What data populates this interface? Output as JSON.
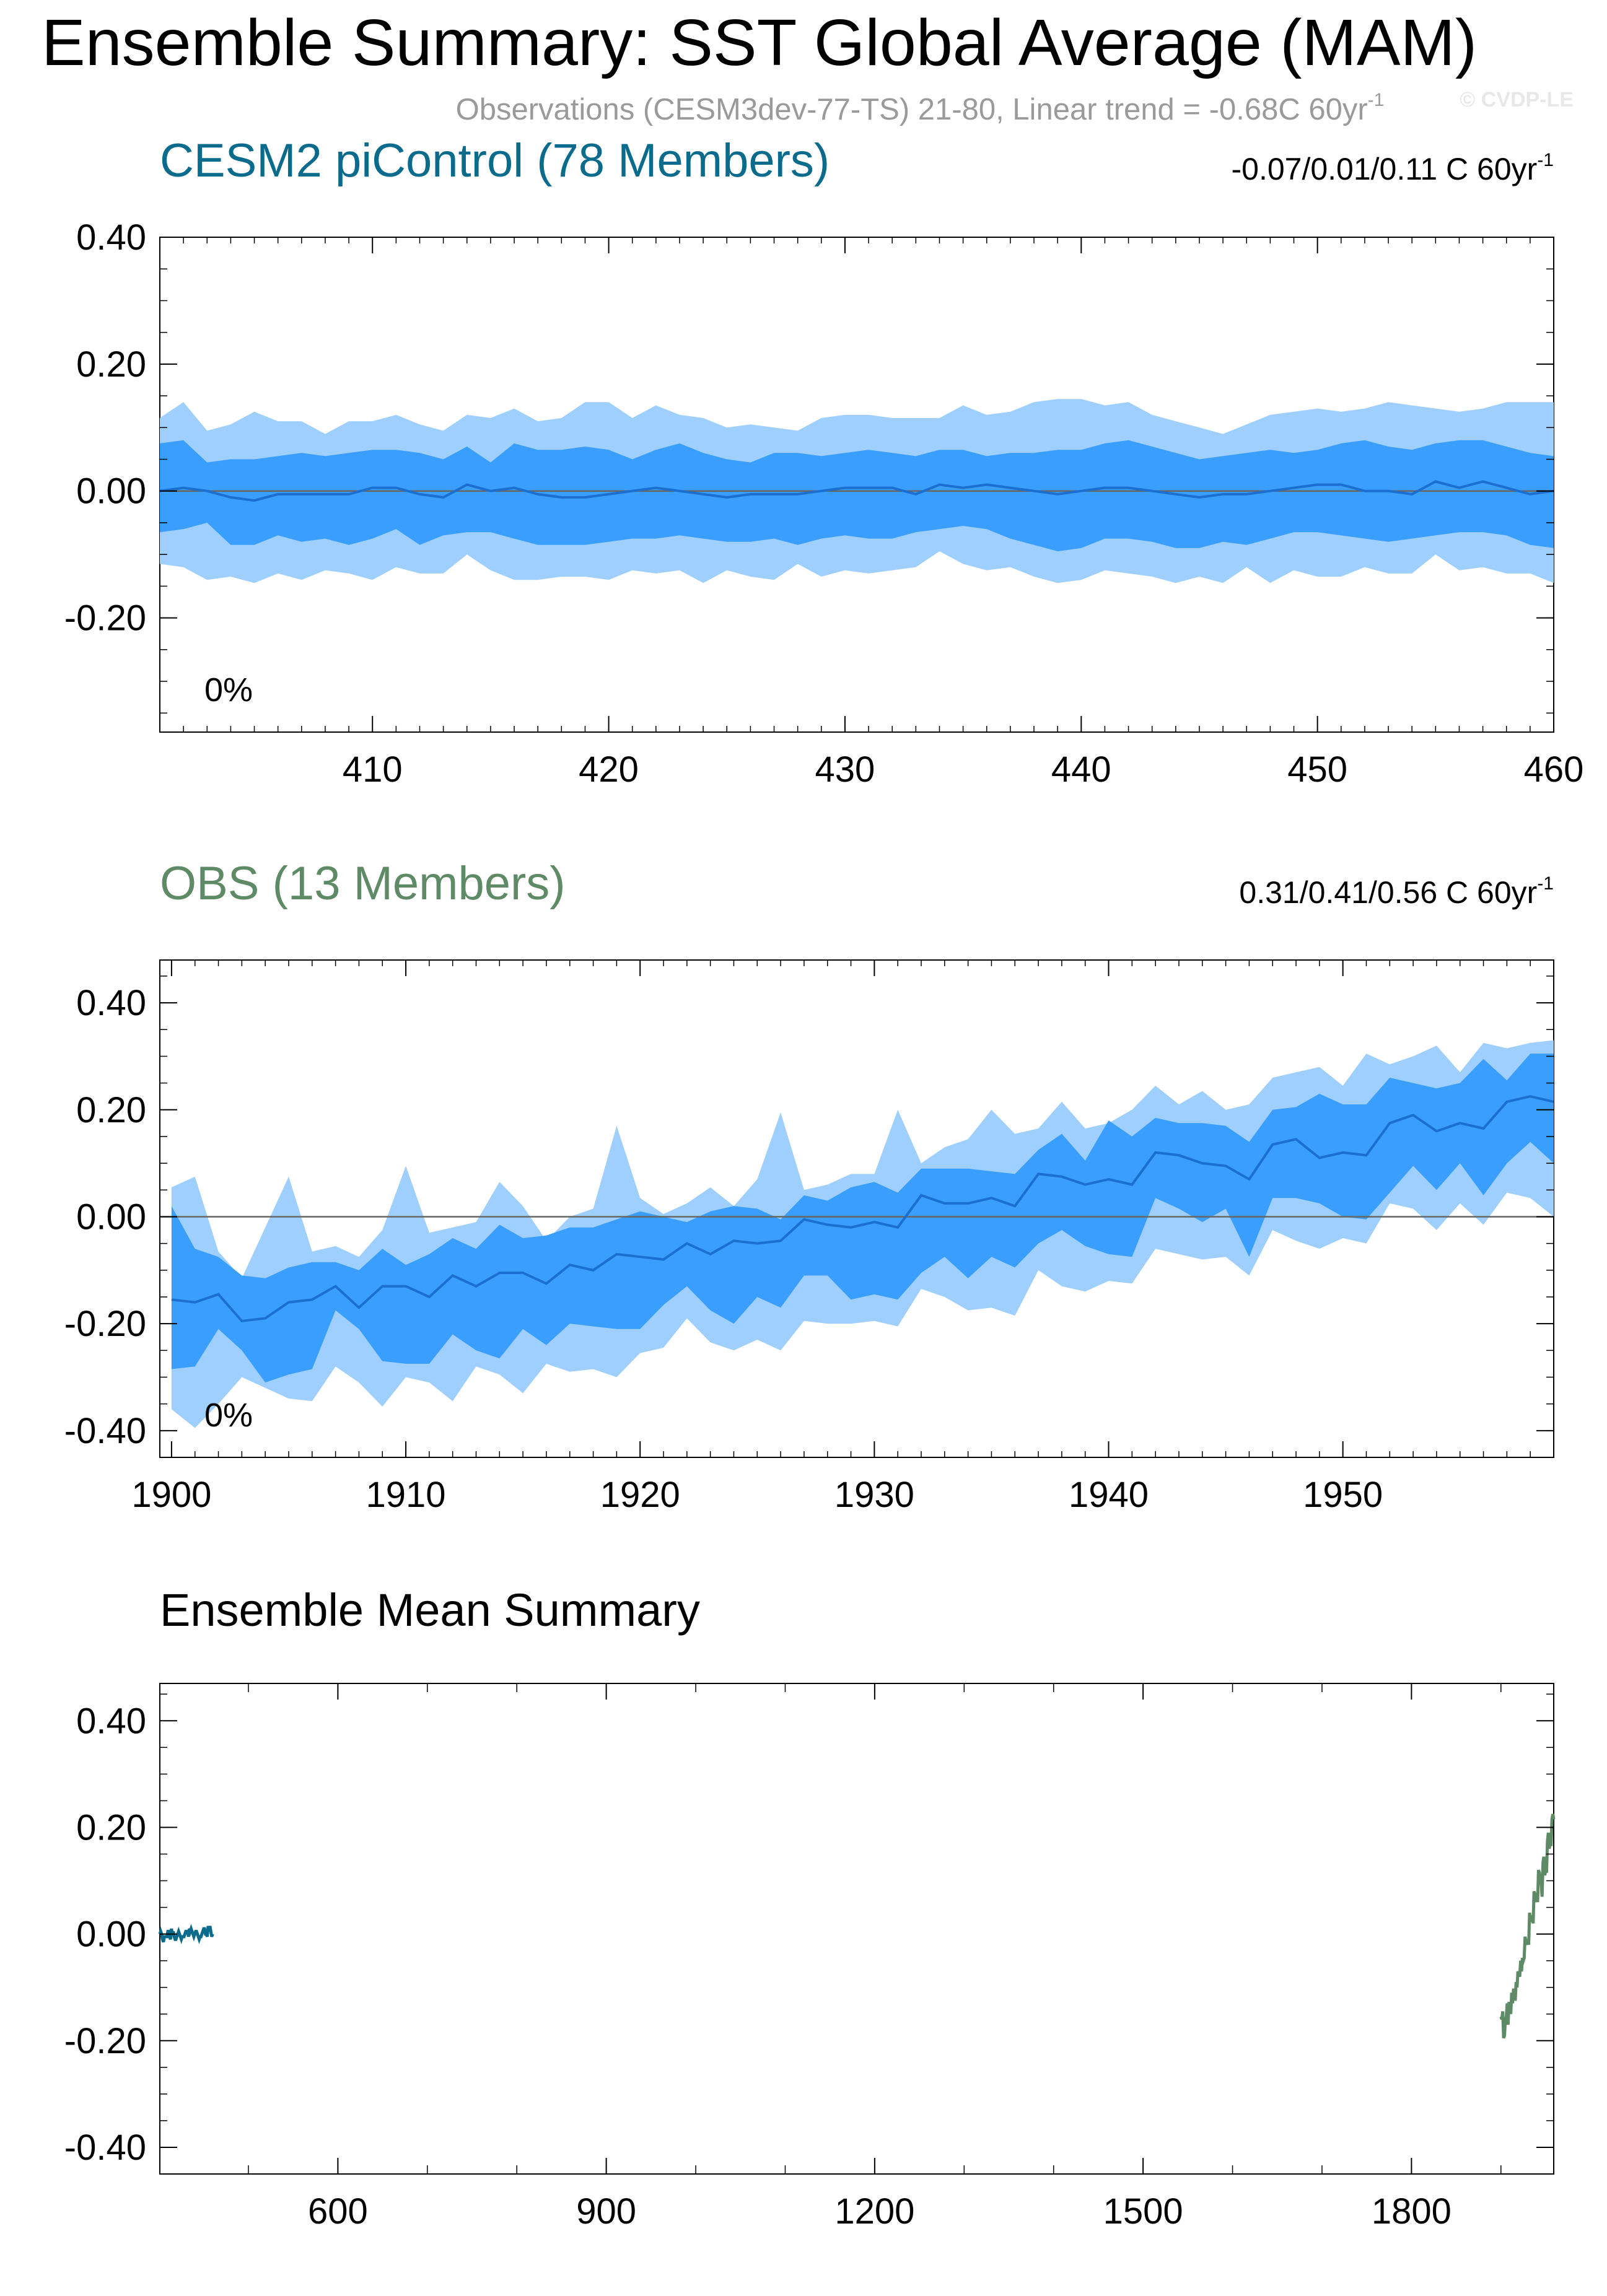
{
  "header": {
    "title": "Ensemble Summary: SST Global Average (MAM)",
    "subtitle": "Observations (CESM3dev-77-TS) 21-80, Linear trend = -0.68C 60yr",
    "subtitle_sup": "-1",
    "copyright": "© CVDP-LE"
  },
  "colors": {
    "band_outer": "#9ecfff",
    "band_inner": "#3a9eff",
    "mean_line": "#1a6fcf",
    "cesm_title": "#0b6b8c",
    "obs_title": "#5f8a66",
    "axis": "#000000",
    "subtitle": "#9a9a9a"
  },
  "chart_data": [
    {
      "id": "cesm",
      "type": "area",
      "title": "CESM2 piControl (78 Members)",
      "trend_text": "-0.07/0.01/0.11 C 60yr",
      "trend_sup": "-1",
      "pct_label": "0%",
      "xlim": [
        401,
        460
      ],
      "ylim": [
        -0.38,
        0.4
      ],
      "x_ticks": [
        410,
        420,
        430,
        440,
        450,
        460
      ],
      "x_tick_labels": [
        "410",
        "420",
        "430",
        "440",
        "450",
        "460"
      ],
      "y_ticks": [
        0.4,
        0.2,
        0.0,
        -0.2
      ],
      "y_tick_labels": [
        "0.40",
        "0.20",
        "0.00",
        "-0.20"
      ],
      "zero_line": true,
      "x": [
        401,
        402,
        403,
        404,
        405,
        406,
        407,
        408,
        409,
        410,
        411,
        412,
        413,
        414,
        415,
        416,
        417,
        418,
        419,
        420,
        421,
        422,
        423,
        424,
        425,
        426,
        427,
        428,
        429,
        430,
        431,
        432,
        433,
        434,
        435,
        436,
        437,
        438,
        439,
        440,
        441,
        442,
        443,
        444,
        445,
        446,
        447,
        448,
        449,
        450,
        451,
        452,
        453,
        454,
        455,
        456,
        457,
        458,
        459,
        460
      ],
      "mean": [
        0.0,
        0.005,
        0.0,
        -0.01,
        -0.015,
        -0.005,
        -0.005,
        -0.005,
        -0.005,
        0.005,
        0.005,
        -0.005,
        -0.01,
        0.01,
        0.0,
        0.005,
        -0.005,
        -0.01,
        -0.01,
        -0.005,
        0.0,
        0.005,
        0.0,
        -0.005,
        -0.01,
        -0.005,
        -0.005,
        -0.005,
        0.0,
        0.005,
        0.005,
        0.005,
        -0.005,
        0.01,
        0.005,
        0.01,
        0.005,
        0.0,
        -0.005,
        0.0,
        0.005,
        0.005,
        0.0,
        -0.005,
        -0.01,
        -0.005,
        -0.005,
        0.0,
        0.005,
        0.01,
        0.01,
        0.0,
        0.0,
        -0.005,
        0.015,
        0.005,
        0.015,
        0.005,
        -0.005,
        0.0
      ],
      "p25": [
        -0.065,
        -0.06,
        -0.05,
        -0.085,
        -0.085,
        -0.07,
        -0.08,
        -0.075,
        -0.085,
        -0.075,
        -0.06,
        -0.085,
        -0.07,
        -0.065,
        -0.065,
        -0.075,
        -0.085,
        -0.085,
        -0.085,
        -0.08,
        -0.075,
        -0.075,
        -0.07,
        -0.075,
        -0.08,
        -0.08,
        -0.075,
        -0.085,
        -0.075,
        -0.07,
        -0.075,
        -0.075,
        -0.065,
        -0.06,
        -0.055,
        -0.06,
        -0.075,
        -0.085,
        -0.095,
        -0.09,
        -0.075,
        -0.075,
        -0.08,
        -0.09,
        -0.09,
        -0.08,
        -0.085,
        -0.075,
        -0.065,
        -0.065,
        -0.07,
        -0.075,
        -0.08,
        -0.075,
        -0.07,
        -0.065,
        -0.065,
        -0.07,
        -0.085,
        -0.09
      ],
      "p75": [
        0.075,
        0.08,
        0.045,
        0.05,
        0.05,
        0.055,
        0.06,
        0.055,
        0.06,
        0.065,
        0.065,
        0.06,
        0.05,
        0.07,
        0.045,
        0.075,
        0.065,
        0.065,
        0.07,
        0.065,
        0.05,
        0.065,
        0.075,
        0.06,
        0.05,
        0.045,
        0.06,
        0.06,
        0.055,
        0.06,
        0.065,
        0.06,
        0.055,
        0.065,
        0.065,
        0.055,
        0.06,
        0.06,
        0.065,
        0.065,
        0.075,
        0.08,
        0.07,
        0.06,
        0.05,
        0.055,
        0.06,
        0.065,
        0.06,
        0.065,
        0.075,
        0.08,
        0.07,
        0.065,
        0.075,
        0.08,
        0.08,
        0.07,
        0.06,
        0.055
      ],
      "p05": [
        -0.115,
        -0.12,
        -0.14,
        -0.135,
        -0.145,
        -0.13,
        -0.14,
        -0.125,
        -0.13,
        -0.14,
        -0.12,
        -0.13,
        -0.13,
        -0.1,
        -0.125,
        -0.14,
        -0.14,
        -0.135,
        -0.135,
        -0.14,
        -0.125,
        -0.13,
        -0.125,
        -0.145,
        -0.125,
        -0.135,
        -0.14,
        -0.115,
        -0.135,
        -0.125,
        -0.13,
        -0.125,
        -0.12,
        -0.095,
        -0.115,
        -0.125,
        -0.12,
        -0.135,
        -0.145,
        -0.14,
        -0.125,
        -0.13,
        -0.135,
        -0.145,
        -0.135,
        -0.145,
        -0.12,
        -0.145,
        -0.125,
        -0.135,
        -0.135,
        -0.12,
        -0.13,
        -0.13,
        -0.1,
        -0.125,
        -0.12,
        -0.13,
        -0.13,
        -0.145
      ],
      "p95": [
        0.115,
        0.14,
        0.095,
        0.105,
        0.125,
        0.11,
        0.11,
        0.09,
        0.11,
        0.11,
        0.12,
        0.105,
        0.095,
        0.12,
        0.115,
        0.13,
        0.11,
        0.115,
        0.14,
        0.14,
        0.115,
        0.135,
        0.12,
        0.115,
        0.1,
        0.105,
        0.1,
        0.095,
        0.115,
        0.12,
        0.12,
        0.115,
        0.115,
        0.115,
        0.135,
        0.12,
        0.125,
        0.14,
        0.145,
        0.145,
        0.135,
        0.14,
        0.12,
        0.11,
        0.1,
        0.09,
        0.105,
        0.12,
        0.125,
        0.13,
        0.125,
        0.13,
        0.14,
        0.135,
        0.13,
        0.125,
        0.13,
        0.14,
        0.14,
        0.14
      ]
    },
    {
      "id": "obs",
      "type": "area",
      "title": "OBS (13 Members)",
      "trend_text": "0.31/0.41/0.56 C 60yr",
      "trend_sup": "-1",
      "pct_label": "0%",
      "xlim": [
        1899.5,
        1959
      ],
      "ylim": [
        -0.45,
        0.48
      ],
      "x_ticks": [
        1900,
        1910,
        1920,
        1930,
        1940,
        1950
      ],
      "x_tick_labels": [
        "1900",
        "1910",
        "1920",
        "1930",
        "1940",
        "1950"
      ],
      "y_ticks": [
        0.4,
        0.2,
        0.0,
        -0.2,
        -0.4
      ],
      "y_tick_labels": [
        "0.40",
        "0.20",
        "0.00",
        "-0.20",
        "-0.40"
      ],
      "zero_line": true,
      "x": [
        1900,
        1901,
        1902,
        1903,
        1904,
        1905,
        1906,
        1907,
        1908,
        1909,
        1910,
        1911,
        1912,
        1913,
        1914,
        1915,
        1916,
        1917,
        1918,
        1919,
        1920,
        1921,
        1922,
        1923,
        1924,
        1925,
        1926,
        1927,
        1928,
        1929,
        1930,
        1931,
        1932,
        1933,
        1934,
        1935,
        1936,
        1937,
        1938,
        1939,
        1940,
        1941,
        1942,
        1943,
        1944,
        1945,
        1946,
        1947,
        1948,
        1949,
        1950,
        1951,
        1952,
        1953,
        1954,
        1955,
        1956,
        1957,
        1958,
        1959
      ],
      "mean": [
        -0.155,
        -0.16,
        -0.145,
        -0.195,
        -0.19,
        -0.16,
        -0.155,
        -0.13,
        -0.17,
        -0.13,
        -0.13,
        -0.15,
        -0.11,
        -0.13,
        -0.105,
        -0.105,
        -0.125,
        -0.09,
        -0.1,
        -0.07,
        -0.075,
        -0.08,
        -0.05,
        -0.07,
        -0.045,
        -0.05,
        -0.045,
        -0.005,
        -0.015,
        -0.02,
        -0.01,
        -0.02,
        0.04,
        0.025,
        0.025,
        0.035,
        0.02,
        0.08,
        0.075,
        0.06,
        0.07,
        0.06,
        0.12,
        0.115,
        0.1,
        0.095,
        0.07,
        0.135,
        0.145,
        0.11,
        0.12,
        0.115,
        0.175,
        0.19,
        0.16,
        0.175,
        0.165,
        0.215,
        0.225,
        0.215
      ],
      "p25": [
        -0.285,
        -0.28,
        -0.21,
        -0.25,
        -0.31,
        -0.295,
        -0.285,
        -0.175,
        -0.21,
        -0.27,
        -0.275,
        -0.275,
        -0.22,
        -0.25,
        -0.265,
        -0.21,
        -0.24,
        -0.2,
        -0.205,
        -0.21,
        -0.21,
        -0.165,
        -0.13,
        -0.175,
        -0.2,
        -0.15,
        -0.17,
        -0.11,
        -0.11,
        -0.155,
        -0.145,
        -0.155,
        -0.105,
        -0.075,
        -0.115,
        -0.075,
        -0.095,
        -0.05,
        -0.025,
        -0.055,
        -0.07,
        -0.075,
        0.035,
        0.015,
        -0.01,
        0.015,
        -0.075,
        0.035,
        0.035,
        0.025,
        0.0,
        -0.005,
        0.045,
        0.095,
        0.05,
        0.1,
        0.04,
        0.1,
        0.14,
        0.1
      ],
      "p75": [
        0.02,
        -0.06,
        -0.075,
        -0.11,
        -0.115,
        -0.095,
        -0.085,
        -0.085,
        -0.1,
        -0.06,
        -0.09,
        -0.07,
        -0.04,
        -0.06,
        -0.015,
        -0.04,
        -0.035,
        -0.02,
        -0.02,
        -0.005,
        0.01,
        0.0,
        -0.01,
        0.01,
        0.02,
        0.015,
        -0.005,
        0.04,
        0.03,
        0.055,
        0.065,
        0.045,
        0.09,
        0.09,
        0.09,
        0.085,
        0.08,
        0.125,
        0.155,
        0.105,
        0.18,
        0.15,
        0.185,
        0.175,
        0.175,
        0.17,
        0.14,
        0.2,
        0.205,
        0.23,
        0.21,
        0.21,
        0.26,
        0.25,
        0.24,
        0.25,
        0.295,
        0.255,
        0.305,
        0.305
      ],
      "p05": [
        -0.36,
        -0.395,
        -0.35,
        -0.3,
        -0.32,
        -0.34,
        -0.345,
        -0.28,
        -0.31,
        -0.355,
        -0.3,
        -0.31,
        -0.345,
        -0.28,
        -0.295,
        -0.33,
        -0.275,
        -0.29,
        -0.285,
        -0.3,
        -0.255,
        -0.245,
        -0.19,
        -0.235,
        -0.25,
        -0.23,
        -0.25,
        -0.195,
        -0.2,
        -0.2,
        -0.195,
        -0.205,
        -0.135,
        -0.15,
        -0.175,
        -0.17,
        -0.185,
        -0.1,
        -0.13,
        -0.14,
        -0.12,
        -0.125,
        -0.06,
        -0.07,
        -0.08,
        -0.075,
        -0.11,
        -0.025,
        -0.045,
        -0.06,
        -0.04,
        -0.05,
        0.025,
        0.015,
        -0.025,
        0.025,
        -0.015,
        0.045,
        0.035,
        0.0
      ],
      "p95": [
        0.055,
        0.075,
        -0.065,
        -0.115,
        -0.02,
        0.075,
        -0.065,
        -0.055,
        -0.075,
        -0.025,
        0.095,
        -0.03,
        -0.02,
        -0.01,
        0.065,
        0.02,
        -0.045,
        0.0,
        0.015,
        0.17,
        0.035,
        0.005,
        0.025,
        0.055,
        0.02,
        0.07,
        0.195,
        0.05,
        0.06,
        0.08,
        0.08,
        0.2,
        0.1,
        0.13,
        0.145,
        0.2,
        0.155,
        0.165,
        0.215,
        0.165,
        0.175,
        0.2,
        0.245,
        0.21,
        0.235,
        0.2,
        0.21,
        0.26,
        0.27,
        0.28,
        0.245,
        0.305,
        0.285,
        0.3,
        0.32,
        0.27,
        0.325,
        0.315,
        0.325,
        0.33
      ]
    },
    {
      "id": "summary",
      "type": "line",
      "title": "Ensemble Mean Summary",
      "xlim": [
        401,
        1959
      ],
      "ylim": [
        -0.45,
        0.47
      ],
      "x_ticks": [
        600,
        900,
        1200,
        1500,
        1800
      ],
      "x_tick_labels": [
        "600",
        "900",
        "1200",
        "1500",
        "1800"
      ],
      "y_ticks": [
        0.4,
        0.2,
        0.0,
        -0.2,
        -0.4
      ],
      "y_tick_labels": [
        "0.40",
        "0.20",
        "0.00",
        "-0.20",
        "-0.40"
      ],
      "zero_line": false,
      "series": [
        {
          "source": "cesm",
          "color": "#0b6b8c"
        },
        {
          "source": "obs",
          "color": "#5f8a66"
        }
      ]
    }
  ]
}
